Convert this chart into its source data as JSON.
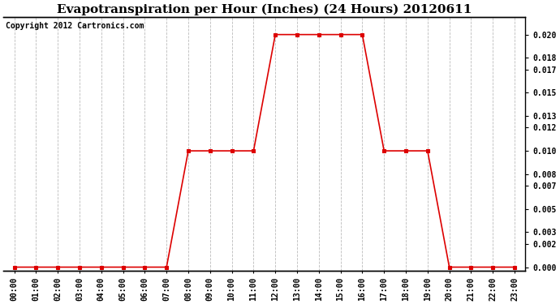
{
  "title": "Evapotranspiration per Hour (Inches) (24 Hours) 20120611",
  "copyright": "Copyright 2012 Cartronics.com",
  "hours": [
    0,
    1,
    2,
    3,
    4,
    5,
    6,
    7,
    8,
    9,
    10,
    11,
    12,
    13,
    14,
    15,
    16,
    17,
    18,
    19,
    20,
    21,
    22,
    23
  ],
  "values": [
    0.0,
    0.0,
    0.0,
    0.0,
    0.0,
    0.0,
    0.0,
    0.0,
    0.01,
    0.01,
    0.01,
    0.01,
    0.02,
    0.02,
    0.02,
    0.02,
    0.02,
    0.01,
    0.01,
    0.01,
    0.0,
    0.0,
    0.0,
    0.0
  ],
  "line_color": "#dd0000",
  "marker": "s",
  "marker_size": 3,
  "bg_color": "#ffffff",
  "grid_color": "#bbbbbb",
  "yticks": [
    0.0,
    0.002,
    0.003,
    0.005,
    0.007,
    0.008,
    0.01,
    0.012,
    0.013,
    0.015,
    0.017,
    0.018,
    0.02
  ],
  "ylim": [
    -0.0003,
    0.0215
  ],
  "xlim": [
    -0.5,
    23.5
  ],
  "title_fontsize": 11,
  "copyright_fontsize": 7,
  "tick_fontsize": 7,
  "ytick_fontsize": 7
}
